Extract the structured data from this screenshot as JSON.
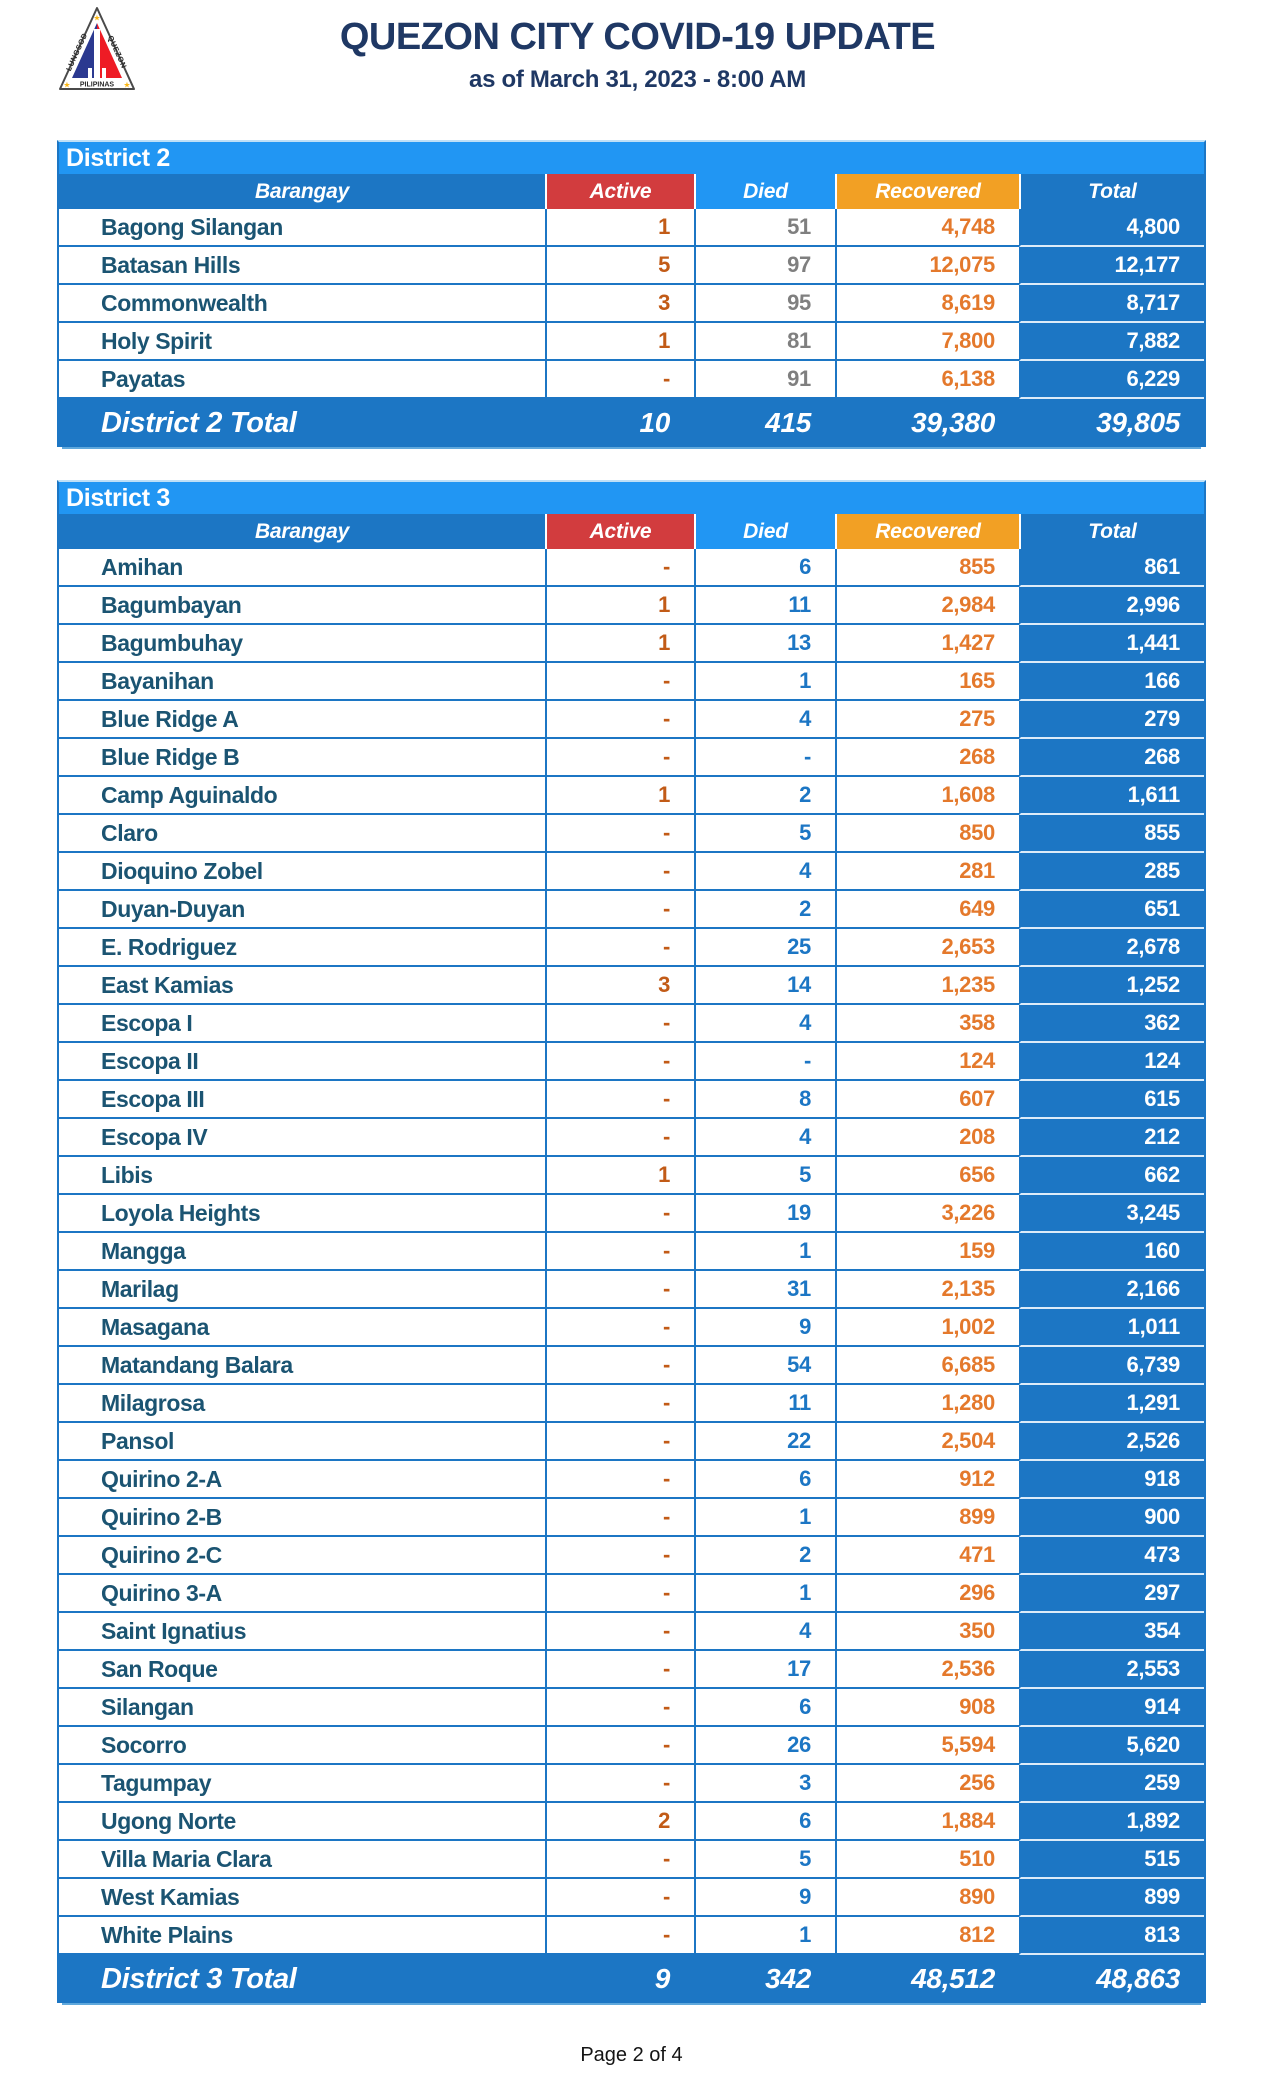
{
  "header": {
    "title": "QUEZON CITY COVID-19 UPDATE",
    "subtitle": "as of March 31, 2023 - 8:00 AM",
    "logo": {
      "arc_left": "LUNGSOD",
      "arc_right": "QUEZON",
      "bottom": "PILIPINAS"
    }
  },
  "columns": [
    "Barangay",
    "Active",
    "Died",
    "Recovered",
    "Total"
  ],
  "tables": [
    {
      "district": "District 2",
      "died_style": "gray",
      "rows": [
        [
          "Bagong Silangan",
          "1",
          "51",
          "4,748",
          "4,800"
        ],
        [
          "Batasan Hills",
          "5",
          "97",
          "12,075",
          "12,177"
        ],
        [
          "Commonwealth",
          "3",
          "95",
          "8,619",
          "8,717"
        ],
        [
          "Holy Spirit",
          "1",
          "81",
          "7,800",
          "7,882"
        ],
        [
          "Payatas",
          "-",
          "91",
          "6,138",
          "6,229"
        ]
      ],
      "total": [
        "District 2 Total",
        "10",
        "415",
        "39,380",
        "39,805"
      ]
    },
    {
      "district": "District 3",
      "died_style": "blue",
      "rows": [
        [
          "Amihan",
          "-",
          "6",
          "855",
          "861"
        ],
        [
          "Bagumbayan",
          "1",
          "11",
          "2,984",
          "2,996"
        ],
        [
          "Bagumbuhay",
          "1",
          "13",
          "1,427",
          "1,441"
        ],
        [
          "Bayanihan",
          "-",
          "1",
          "165",
          "166"
        ],
        [
          "Blue Ridge A",
          "-",
          "4",
          "275",
          "279"
        ],
        [
          "Blue Ridge B",
          "-",
          "-",
          "268",
          "268"
        ],
        [
          "Camp Aguinaldo",
          "1",
          "2",
          "1,608",
          "1,611"
        ],
        [
          "Claro",
          "-",
          "5",
          "850",
          "855"
        ],
        [
          "Dioquino Zobel",
          "-",
          "4",
          "281",
          "285"
        ],
        [
          "Duyan-Duyan",
          "-",
          "2",
          "649",
          "651"
        ],
        [
          "E. Rodriguez",
          "-",
          "25",
          "2,653",
          "2,678"
        ],
        [
          "East Kamias",
          "3",
          "14",
          "1,235",
          "1,252"
        ],
        [
          "Escopa I",
          "-",
          "4",
          "358",
          "362"
        ],
        [
          "Escopa II",
          "-",
          "-",
          "124",
          "124"
        ],
        [
          "Escopa III",
          "-",
          "8",
          "607",
          "615"
        ],
        [
          "Escopa IV",
          "-",
          "4",
          "208",
          "212"
        ],
        [
          "Libis",
          "1",
          "5",
          "656",
          "662"
        ],
        [
          "Loyola Heights",
          "-",
          "19",
          "3,226",
          "3,245"
        ],
        [
          "Mangga",
          "-",
          "1",
          "159",
          "160"
        ],
        [
          "Marilag",
          "-",
          "31",
          "2,135",
          "2,166"
        ],
        [
          "Masagana",
          "-",
          "9",
          "1,002",
          "1,011"
        ],
        [
          "Matandang Balara",
          "-",
          "54",
          "6,685",
          "6,739"
        ],
        [
          "Milagrosa",
          "-",
          "11",
          "1,280",
          "1,291"
        ],
        [
          "Pansol",
          "-",
          "22",
          "2,504",
          "2,526"
        ],
        [
          "Quirino 2-A",
          "-",
          "6",
          "912",
          "918"
        ],
        [
          "Quirino 2-B",
          "-",
          "1",
          "899",
          "900"
        ],
        [
          "Quirino 2-C",
          "-",
          "2",
          "471",
          "473"
        ],
        [
          "Quirino 3-A",
          "-",
          "1",
          "296",
          "297"
        ],
        [
          "Saint Ignatius",
          "-",
          "4",
          "350",
          "354"
        ],
        [
          "San Roque",
          "-",
          "17",
          "2,536",
          "2,553"
        ],
        [
          "Silangan",
          "-",
          "6",
          "908",
          "914"
        ],
        [
          "Socorro",
          "-",
          "26",
          "5,594",
          "5,620"
        ],
        [
          "Tagumpay",
          "-",
          "3",
          "256",
          "259"
        ],
        [
          "Ugong Norte",
          "2",
          "6",
          "1,884",
          "1,892"
        ],
        [
          "Villa Maria Clara",
          "-",
          "5",
          "510",
          "515"
        ],
        [
          "West Kamias",
          "-",
          "9",
          "890",
          "899"
        ],
        [
          "White Plains",
          "-",
          "1",
          "812",
          "813"
        ]
      ],
      "total": [
        "District 3 Total",
        "9",
        "342",
        "48,512",
        "48,863"
      ]
    }
  ],
  "footer": {
    "page_label": "Page 2 of 4"
  },
  "colors": {
    "band_blue": "#2196F3",
    "header_dark_blue": "#1C76C4",
    "active_header_red": "#D23C3E",
    "recovered_header_orange": "#F2A024",
    "barangay_text": "#1B5472",
    "active_value_orange": "#C25B17",
    "recovered_value_orange": "#E4792C",
    "died_value_gray_district2": "#7F7F7F",
    "died_value_blue_district3": "#1C76C4",
    "total_column_fill": "#1C76C4",
    "title_navy": "#1F3864"
  }
}
